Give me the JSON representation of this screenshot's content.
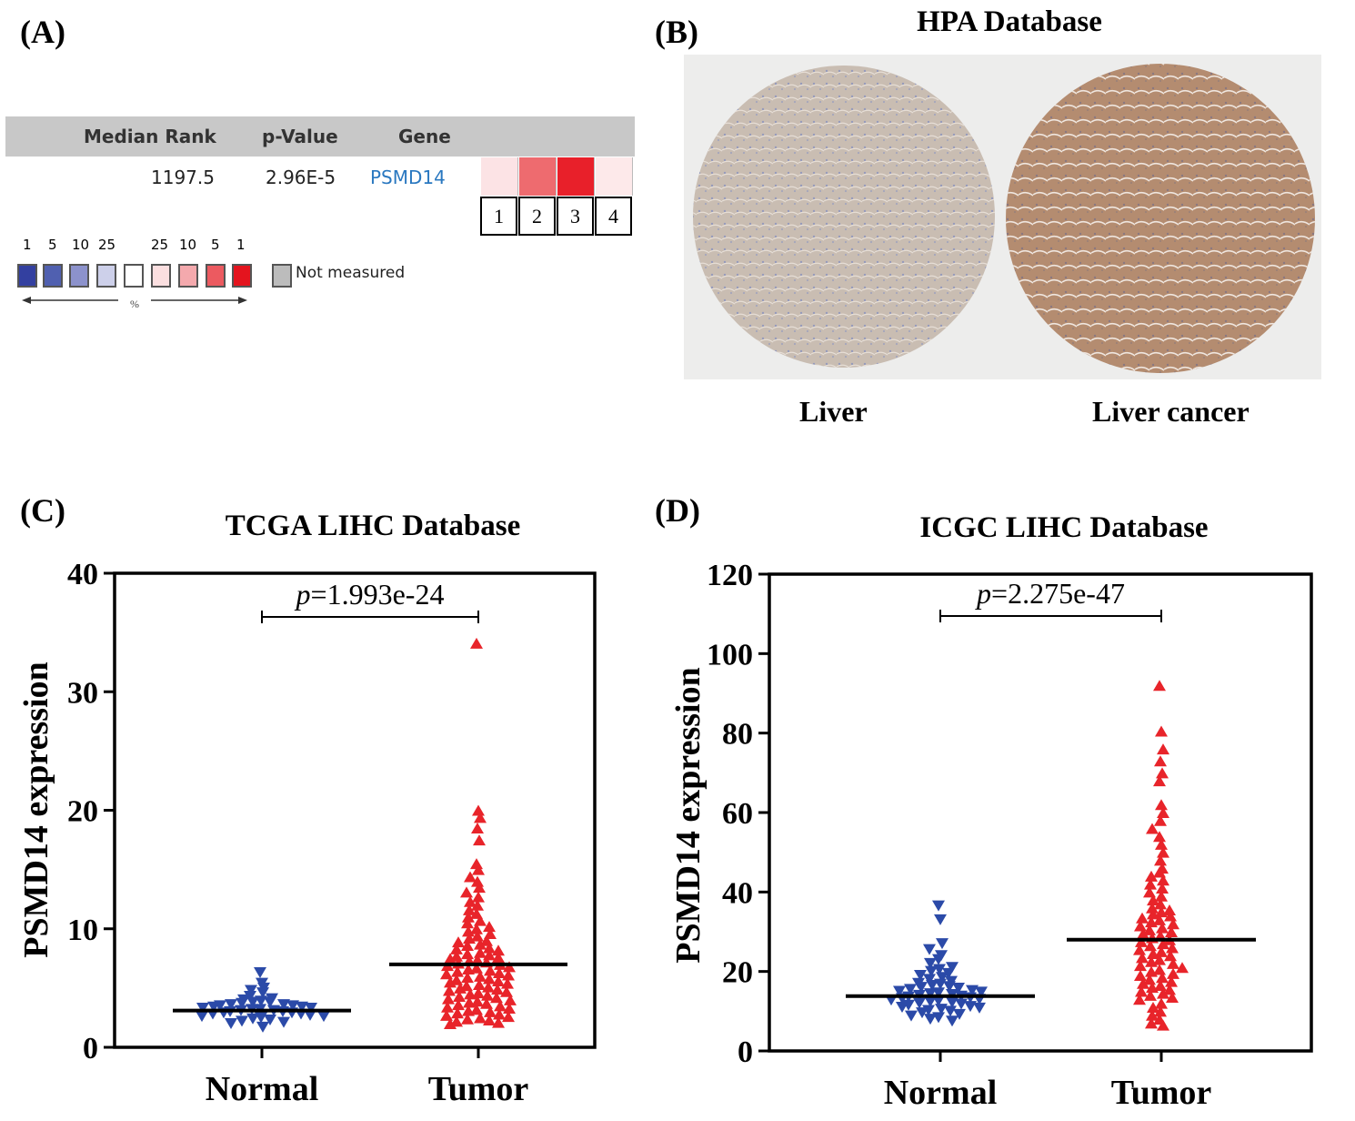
{
  "panelA": {
    "letter": "(A)",
    "headers": {
      "median_rank": "Median Rank",
      "p_value": "p-Value",
      "gene": "Gene"
    },
    "row": {
      "median_rank": "1197.5",
      "p_value": "2.96E-5",
      "gene": "PSMD14"
    },
    "heatmap_colors": [
      "#fce3e5",
      "#ee6b6f",
      "#e8202a",
      "#fde9ea"
    ],
    "heatmap_labels": [
      "1",
      "2",
      "3",
      "4"
    ],
    "legend_numbers": [
      "1",
      "5",
      "10",
      "25",
      "25",
      "10",
      "5",
      "1"
    ],
    "legend_colors": [
      "#3340a0",
      "#5060b0",
      "#8c92cc",
      "#cdd0ea",
      "#ffffff",
      "#fbdfe0",
      "#f4a9ad",
      "#ec5a60",
      "#e4141e"
    ],
    "legend_percent": "%",
    "not_measured": "Not measured",
    "not_measured_color": "#bcbcbc"
  },
  "panelB": {
    "letter": "(B)",
    "title": "HPA Database",
    "captions": {
      "left": "Liver",
      "right": "Liver cancer"
    },
    "tissue_colors": {
      "liver": "#c9bdb2",
      "cancer": "#b48c70"
    }
  },
  "chart_data": [
    {
      "letter": "(C)",
      "type": "scatter",
      "title": "TCGA LIHC Database",
      "ylabel": "PSMD14 expression",
      "ylim": [
        0,
        40
      ],
      "yticks": [
        "0",
        "10",
        "20",
        "30",
        "40"
      ],
      "categories": [
        "Normal",
        "Tumor"
      ],
      "p_value": {
        "p": "p",
        "eq": "=",
        "value": "1.993e-24"
      },
      "series": [
        {
          "name": "Normal",
          "color": "#2b4aa8",
          "marker": "triangle-down",
          "median": 3.1,
          "values": [
            6.3,
            5.4,
            5.0,
            4.8,
            4.6,
            4.3,
            4.1,
            4.0,
            3.9,
            3.8,
            3.8,
            3.7,
            3.6,
            3.6,
            3.5,
            3.5,
            3.4,
            3.4,
            3.3,
            3.3,
            3.2,
            3.2,
            3.1,
            3.1,
            3.0,
            3.0,
            2.9,
            2.9,
            2.8,
            2.8,
            2.7,
            2.6,
            2.6,
            2.5,
            2.4,
            2.3,
            2.2,
            2.1,
            2.0,
            1.7
          ]
        },
        {
          "name": "Tumor",
          "color": "#e8242a",
          "marker": "triangle-up",
          "median": 7.0,
          "values": [
            34.1,
            20.0,
            19.4,
            18.5,
            17.5,
            15.5,
            15.0,
            14.4,
            14.0,
            13.5,
            13.1,
            12.7,
            12.3,
            12.0,
            11.6,
            11.3,
            11.0,
            10.7,
            10.5,
            10.2,
            10.0,
            9.8,
            9.6,
            9.4,
            9.2,
            9.0,
            8.9,
            8.7,
            8.6,
            8.4,
            8.3,
            8.2,
            8.0,
            7.9,
            7.8,
            7.7,
            7.6,
            7.5,
            7.4,
            7.3,
            7.2,
            7.1,
            7.0,
            6.9,
            6.8,
            6.7,
            6.6,
            6.5,
            6.4,
            6.3,
            6.2,
            6.1,
            6.0,
            5.9,
            5.8,
            5.7,
            5.6,
            5.5,
            5.4,
            5.3,
            5.2,
            5.1,
            5.0,
            4.9,
            4.8,
            4.7,
            4.6,
            4.5,
            4.4,
            4.3,
            4.2,
            4.1,
            4.0,
            3.9,
            3.8,
            3.7,
            3.6,
            3.5,
            3.4,
            3.3,
            3.2,
            3.1,
            3.0,
            2.9,
            2.8,
            2.7,
            2.6,
            2.5,
            2.4,
            2.3,
            2.2,
            2.1,
            2.0
          ]
        }
      ]
    },
    {
      "letter": "(D)",
      "type": "scatter",
      "title": "ICGC LIHC Database",
      "ylabel": "PSMD14 expression",
      "ylim": [
        0,
        120
      ],
      "yticks": [
        "0",
        "20",
        "40",
        "60",
        "80",
        "100",
        "120"
      ],
      "categories": [
        "Normal",
        "Tumor"
      ],
      "p_value": {
        "p": "p",
        "eq": "=",
        "value": "2.275e-47"
      },
      "series": [
        {
          "name": "Normal",
          "color": "#2b4aa8",
          "marker": "triangle-down",
          "median": 13.8,
          "values": [
            36.5,
            33.0,
            27.0,
            25.5,
            24.0,
            23.0,
            22.0,
            21.0,
            20.5,
            20.0,
            19.5,
            19.0,
            18.5,
            18.0,
            17.5,
            17.0,
            16.8,
            16.5,
            16.2,
            16.0,
            15.8,
            15.5,
            15.2,
            15.0,
            14.8,
            14.6,
            14.4,
            14.2,
            14.0,
            13.8,
            13.6,
            13.4,
            13.2,
            13.0,
            12.8,
            12.6,
            12.4,
            12.2,
            12.0,
            11.8,
            11.5,
            11.2,
            11.0,
            10.8,
            10.5,
            10.2,
            10.0,
            9.6,
            9.2,
            8.8,
            8.4,
            8.0,
            7.5
          ]
        },
        {
          "name": "Tumor",
          "color": "#e8242a",
          "marker": "triangle-up",
          "median": 28.0,
          "values": [
            92.0,
            80.5,
            76.0,
            73.0,
            70.0,
            68.0,
            62.0,
            60.0,
            58.0,
            56.0,
            54.0,
            52.0,
            50.0,
            48.0,
            46.0,
            45.0,
            44.0,
            43.0,
            42.0,
            41.0,
            40.0,
            39.0,
            38.0,
            37.0,
            36.0,
            35.5,
            35.0,
            34.5,
            34.0,
            33.5,
            33.0,
            32.5,
            32.0,
            31.5,
            31.0,
            30.5,
            30.0,
            29.5,
            29.0,
            28.5,
            28.0,
            27.5,
            27.0,
            26.5,
            26.0,
            25.5,
            25.0,
            24.5,
            24.0,
            23.5,
            23.0,
            22.5,
            22.0,
            21.5,
            21.0,
            20.5,
            20.0,
            19.5,
            19.0,
            18.5,
            18.0,
            17.5,
            17.0,
            16.5,
            16.0,
            15.5,
            15.0,
            14.5,
            14.0,
            13.5,
            13.0,
            12.0,
            11.0,
            10.0,
            9.0,
            8.0,
            7.0,
            6.5
          ]
        }
      ]
    }
  ]
}
